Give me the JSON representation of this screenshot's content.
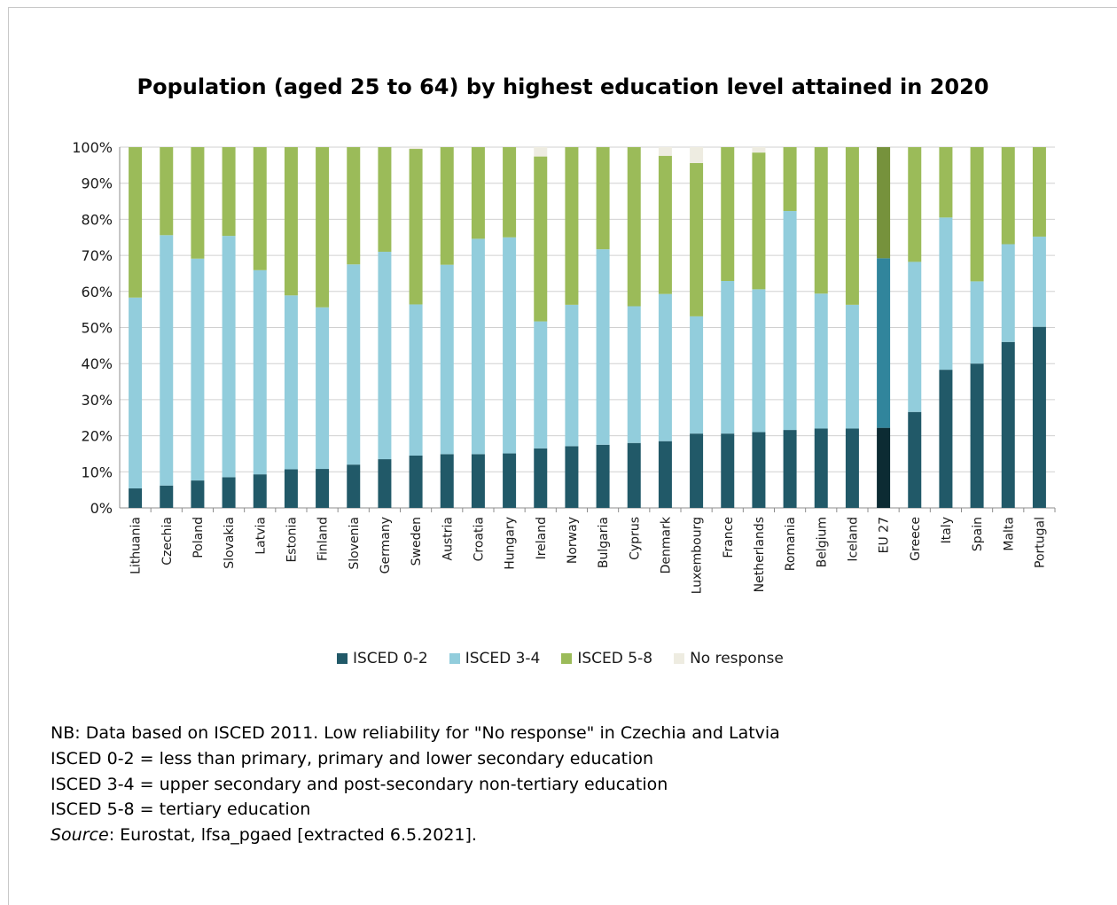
{
  "chart_data": {
    "type": "bar",
    "stacked": true,
    "title": "Population (aged 25 to 64) by highest education level attained in 2020",
    "xlabel": "",
    "ylabel": "",
    "ylim": [
      0,
      100
    ],
    "y_tick_labels": [
      "0%",
      "10%",
      "20%",
      "30%",
      "40%",
      "50%",
      "60%",
      "70%",
      "80%",
      "90%",
      "100%"
    ],
    "grid": "horizontal",
    "legend_position": "bottom",
    "categories": [
      "Lithuania",
      "Czechia",
      "Poland",
      "Slovakia",
      "Latvia",
      "Estonia",
      "Finland",
      "Slovenia",
      "Germany",
      "Sweden",
      "Austria",
      "Croatia",
      "Hungary",
      "Ireland",
      "Norway",
      "Bulgaria",
      "Cyprus",
      "Denmark",
      "Luxembourg",
      "France",
      "Netherlands",
      "Romania",
      "Belgium",
      "Iceland",
      "EU 27",
      "Greece",
      "Italy",
      "Spain",
      "Malta",
      "Portugal"
    ],
    "series": [
      {
        "name": "ISCED 0-2",
        "color": "#215968",
        "values": [
          5.4,
          6.2,
          7.6,
          8.5,
          9.3,
          10.7,
          10.8,
          12.0,
          13.5,
          14.5,
          14.9,
          14.9,
          15.1,
          16.5,
          17.1,
          17.5,
          18.0,
          18.5,
          20.6,
          20.6,
          21.0,
          21.6,
          22.0,
          22.0,
          22.2,
          26.6,
          38.3,
          40.0,
          46.0,
          50.2
        ]
      },
      {
        "name": "ISCED 3-4",
        "color": "#92cddc",
        "values": [
          52.9,
          69.4,
          61.5,
          66.9,
          56.6,
          48.2,
          44.8,
          55.5,
          57.5,
          41.9,
          52.5,
          59.7,
          59.9,
          35.2,
          39.2,
          54.2,
          37.9,
          40.8,
          32.5,
          42.3,
          39.6,
          60.7,
          37.4,
          34.3,
          47.0,
          41.6,
          42.2,
          22.8,
          27.1,
          25.0
        ]
      },
      {
        "name": "ISCED 5-8",
        "color": "#9bbb59",
        "values": [
          41.7,
          24.4,
          30.9,
          24.6,
          34.1,
          41.1,
          44.4,
          32.5,
          29.0,
          43.1,
          32.6,
          25.4,
          25.0,
          45.7,
          43.7,
          28.3,
          44.1,
          38.3,
          42.5,
          37.1,
          37.9,
          17.7,
          40.6,
          43.7,
          30.8,
          31.8,
          19.5,
          37.2,
          26.9,
          24.8
        ]
      },
      {
        "name": "No response",
        "color": "#eeece1",
        "values": [
          0,
          0,
          0,
          0,
          0,
          0,
          0,
          0,
          0,
          0.5,
          0,
          0,
          0,
          2.6,
          0,
          0,
          0,
          2.4,
          4.4,
          0,
          1.5,
          0,
          0,
          0,
          0,
          0,
          0,
          0,
          0,
          0
        ]
      }
    ],
    "highlight_category": "EU 27",
    "highlight_colors": [
      "#0c2b33",
      "#31859c",
      "#76923c",
      "#eeece1"
    ]
  },
  "notes": {
    "line1": "NB: Data based on ISCED 2011. Low reliability for \"No response\" in Czechia and Latvia",
    "line2": "ISCED 0-2 = less than primary, primary and lower secondary education",
    "line3": "ISCED 3-4 = upper secondary and post-secondary non-tertiary education",
    "line4": "ISCED 5-8 = tertiary education",
    "source_label": "Source",
    "source_text": ": Eurostat, lfsa_pgaed [extracted 6.5.2021]."
  }
}
